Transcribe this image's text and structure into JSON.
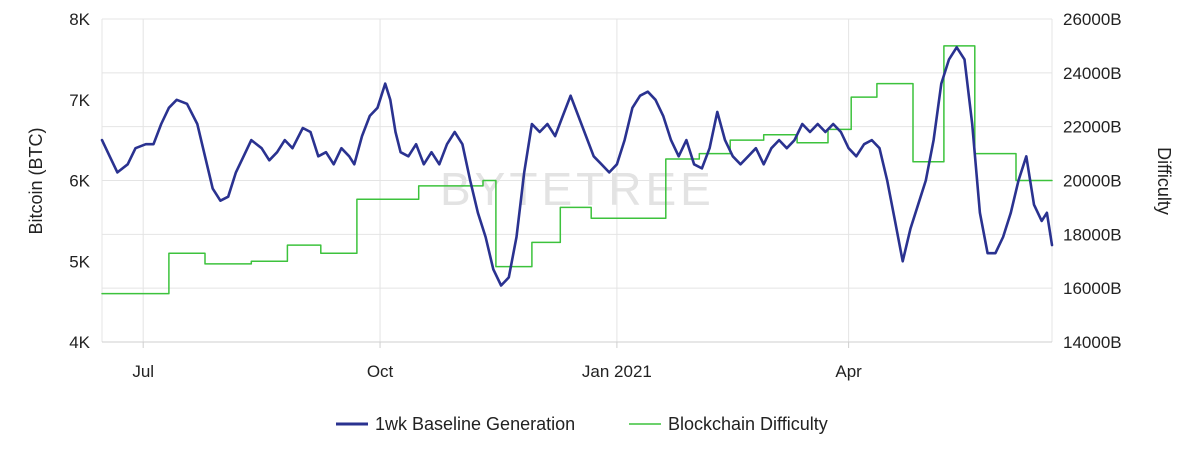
{
  "chart_data": {
    "type": "line",
    "watermark": "BYTETREE",
    "x_ticks": [
      "Jul",
      "Oct",
      "Jan 2021",
      "Apr"
    ],
    "y_left": {
      "label": "Bitcoin (BTC)",
      "ticks": [
        "4K",
        "5K",
        "6K",
        "7K",
        "8K"
      ],
      "range": [
        4000,
        8000
      ]
    },
    "y_right": {
      "label": "Difficulty",
      "ticks": [
        "14000B",
        "16000B",
        "18000B",
        "20000B",
        "22000B",
        "24000B",
        "26000B"
      ],
      "range": [
        14000,
        26000
      ]
    },
    "x_range": [
      "2020-06-15",
      "2021-06-19"
    ],
    "grid": true,
    "legend_position": "bottom",
    "series": [
      {
        "name": "1wk Baseline Generation",
        "axis": "left",
        "color": "#2a3290",
        "points": [
          [
            "2020-06-15",
            6500
          ],
          [
            "2020-06-18",
            6300
          ],
          [
            "2020-06-21",
            6100
          ],
          [
            "2020-06-25",
            6200
          ],
          [
            "2020-06-28",
            6400
          ],
          [
            "2020-07-02",
            6450
          ],
          [
            "2020-07-05",
            6450
          ],
          [
            "2020-07-08",
            6700
          ],
          [
            "2020-07-11",
            6900
          ],
          [
            "2020-07-14",
            7000
          ],
          [
            "2020-07-18",
            6950
          ],
          [
            "2020-07-22",
            6700
          ],
          [
            "2020-07-25",
            6300
          ],
          [
            "2020-07-28",
            5900
          ],
          [
            "2020-07-31",
            5750
          ],
          [
            "2020-08-03",
            5800
          ],
          [
            "2020-08-06",
            6100
          ],
          [
            "2020-08-09",
            6300
          ],
          [
            "2020-08-12",
            6500
          ],
          [
            "2020-08-16",
            6400
          ],
          [
            "2020-08-19",
            6250
          ],
          [
            "2020-08-22",
            6350
          ],
          [
            "2020-08-25",
            6500
          ],
          [
            "2020-08-28",
            6400
          ],
          [
            "2020-09-01",
            6650
          ],
          [
            "2020-09-04",
            6600
          ],
          [
            "2020-09-07",
            6300
          ],
          [
            "2020-09-10",
            6350
          ],
          [
            "2020-09-13",
            6200
          ],
          [
            "2020-09-16",
            6400
          ],
          [
            "2020-09-19",
            6300
          ],
          [
            "2020-09-21",
            6200
          ],
          [
            "2020-09-24",
            6550
          ],
          [
            "2020-09-27",
            6800
          ],
          [
            "2020-09-30",
            6900
          ],
          [
            "2020-10-03",
            7200
          ],
          [
            "2020-10-05",
            7000
          ],
          [
            "2020-10-07",
            6600
          ],
          [
            "2020-10-09",
            6350
          ],
          [
            "2020-10-12",
            6300
          ],
          [
            "2020-10-15",
            6450
          ],
          [
            "2020-10-18",
            6200
          ],
          [
            "2020-10-21",
            6350
          ],
          [
            "2020-10-24",
            6200
          ],
          [
            "2020-10-27",
            6450
          ],
          [
            "2020-10-30",
            6600
          ],
          [
            "2020-11-02",
            6450
          ],
          [
            "2020-11-05",
            6000
          ],
          [
            "2020-11-08",
            5600
          ],
          [
            "2020-11-11",
            5300
          ],
          [
            "2020-11-14",
            4900
          ],
          [
            "2020-11-17",
            4700
          ],
          [
            "2020-11-20",
            4800
          ],
          [
            "2020-11-23",
            5300
          ],
          [
            "2020-11-26",
            6100
          ],
          [
            "2020-11-29",
            6700
          ],
          [
            "2020-12-02",
            6600
          ],
          [
            "2020-12-05",
            6700
          ],
          [
            "2020-12-08",
            6550
          ],
          [
            "2020-12-11",
            6800
          ],
          [
            "2020-12-14",
            7050
          ],
          [
            "2020-12-17",
            6800
          ],
          [
            "2020-12-20",
            6550
          ],
          [
            "2020-12-23",
            6300
          ],
          [
            "2020-12-26",
            6200
          ],
          [
            "2020-12-29",
            6100
          ],
          [
            "2021-01-01",
            6200
          ],
          [
            "2021-01-04",
            6500
          ],
          [
            "2021-01-07",
            6900
          ],
          [
            "2021-01-10",
            7050
          ],
          [
            "2021-01-13",
            7100
          ],
          [
            "2021-01-16",
            7000
          ],
          [
            "2021-01-19",
            6800
          ],
          [
            "2021-01-22",
            6500
          ],
          [
            "2021-01-25",
            6300
          ],
          [
            "2021-01-28",
            6500
          ],
          [
            "2021-01-31",
            6200
          ],
          [
            "2021-02-03",
            6150
          ],
          [
            "2021-02-06",
            6400
          ],
          [
            "2021-02-09",
            6850
          ],
          [
            "2021-02-12",
            6500
          ],
          [
            "2021-02-15",
            6300
          ],
          [
            "2021-02-18",
            6200
          ],
          [
            "2021-02-21",
            6300
          ],
          [
            "2021-02-24",
            6400
          ],
          [
            "2021-02-27",
            6200
          ],
          [
            "2021-03-02",
            6400
          ],
          [
            "2021-03-05",
            6500
          ],
          [
            "2021-03-08",
            6400
          ],
          [
            "2021-03-11",
            6500
          ],
          [
            "2021-03-14",
            6700
          ],
          [
            "2021-03-17",
            6600
          ],
          [
            "2021-03-20",
            6700
          ],
          [
            "2021-03-23",
            6600
          ],
          [
            "2021-03-26",
            6700
          ],
          [
            "2021-03-29",
            6600
          ],
          [
            "2021-04-01",
            6400
          ],
          [
            "2021-04-04",
            6300
          ],
          [
            "2021-04-07",
            6450
          ],
          [
            "2021-04-10",
            6500
          ],
          [
            "2021-04-13",
            6400
          ],
          [
            "2021-04-16",
            6000
          ],
          [
            "2021-04-19",
            5500
          ],
          [
            "2021-04-22",
            5000
          ],
          [
            "2021-04-25",
            5400
          ],
          [
            "2021-04-28",
            5700
          ],
          [
            "2021-05-01",
            6000
          ],
          [
            "2021-05-04",
            6500
          ],
          [
            "2021-05-07",
            7200
          ],
          [
            "2021-05-10",
            7500
          ],
          [
            "2021-05-13",
            7650
          ],
          [
            "2021-05-16",
            7500
          ],
          [
            "2021-05-19",
            6700
          ],
          [
            "2021-05-22",
            5600
          ],
          [
            "2021-05-25",
            5100
          ],
          [
            "2021-05-28",
            5100
          ],
          [
            "2021-05-31",
            5300
          ],
          [
            "2021-06-03",
            5600
          ],
          [
            "2021-06-06",
            6000
          ],
          [
            "2021-06-09",
            6300
          ],
          [
            "2021-06-12",
            5700
          ],
          [
            "2021-06-15",
            5500
          ],
          [
            "2021-06-17",
            5600
          ],
          [
            "2021-06-19",
            5200
          ]
        ]
      },
      {
        "name": "Blockchain Difficulty",
        "axis": "right",
        "color": "#3cc23c",
        "step": true,
        "points": [
          [
            "2020-06-15",
            15800
          ],
          [
            "2020-07-11",
            17300
          ],
          [
            "2020-07-25",
            16900
          ],
          [
            "2020-08-12",
            17000
          ],
          [
            "2020-08-26",
            17600
          ],
          [
            "2020-09-08",
            17300
          ],
          [
            "2020-09-22",
            19300
          ],
          [
            "2020-10-11",
            19300
          ],
          [
            "2020-10-16",
            19800
          ],
          [
            "2020-11-10",
            20000
          ],
          [
            "2020-11-15",
            16800
          ],
          [
            "2020-11-29",
            17700
          ],
          [
            "2020-12-10",
            19000
          ],
          [
            "2020-12-22",
            18600
          ],
          [
            "2021-01-03",
            18600
          ],
          [
            "2021-01-20",
            20800
          ],
          [
            "2021-02-02",
            21000
          ],
          [
            "2021-02-14",
            21500
          ],
          [
            "2021-02-27",
            21700
          ],
          [
            "2021-03-12",
            21400
          ],
          [
            "2021-03-24",
            21900
          ],
          [
            "2021-04-02",
            23100
          ],
          [
            "2021-04-12",
            23600
          ],
          [
            "2021-04-26",
            20700
          ],
          [
            "2021-05-08",
            25000
          ],
          [
            "2021-05-20",
            21000
          ],
          [
            "2021-06-05",
            20000
          ],
          [
            "2021-06-19",
            20000
          ]
        ]
      }
    ]
  }
}
